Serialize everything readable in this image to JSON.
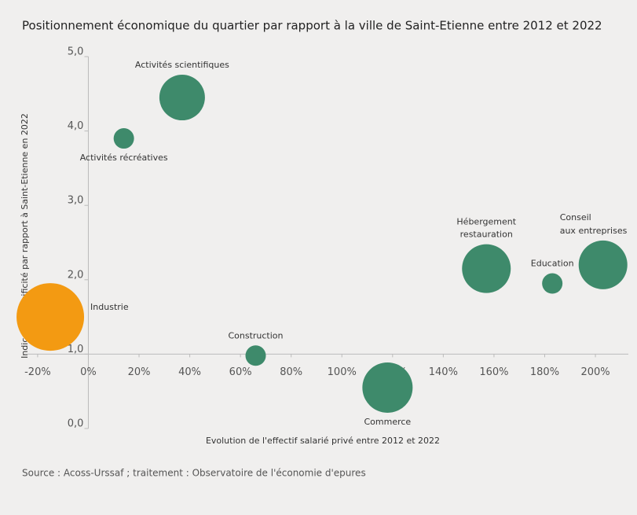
{
  "chart_data": {
    "type": "bubble",
    "title": "Positionnement économique du quartier par rapport à la ville de Saint-Etienne entre 2012 et 2022",
    "x_label": "Evolution de l'effectif salarié privé entre 2012 et 2022",
    "y_label": "Indice de spécificité par rapport à Saint-Etienne en 2022",
    "source": "Source : Acoss-Urssaf ; traitement : Observatoire de l'économie d'epures",
    "labels": [
      [
        "Industrie"
      ],
      [
        "Activités scientifiques"
      ],
      [
        "Activités récréatives"
      ],
      [
        "Construction"
      ],
      [
        "Commerce"
      ],
      [
        "Hébergement",
        "restauration"
      ],
      [
        "Education"
      ],
      [
        "Conseil",
        "aux entreprises"
      ]
    ],
    "x": [
      -15,
      37,
      14,
      66,
      118,
      157,
      183,
      203
    ],
    "values": [
      1.5,
      4.45,
      3.9,
      0.98,
      0.55,
      2.15,
      1.95,
      2.2
    ],
    "sizes": [
      43,
      29,
      13,
      13,
      32,
      31,
      13,
      31
    ],
    "colors": [
      "#f39a12",
      "#3e8a6b",
      "#3e8a6b",
      "#3e8a6b",
      "#3e8a6b",
      "#3e8a6b",
      "#3e8a6b",
      "#3e8a6b"
    ],
    "xlim": [
      -24,
      213
    ],
    "ylim": [
      0,
      5
    ],
    "xaxis_crosses_y": 1,
    "yaxis_crosses_x": 0,
    "xticks": [
      {
        "value": -20,
        "label": "-20%"
      },
      {
        "value": 0,
        "label": "0%"
      },
      {
        "value": 20,
        "label": "20%"
      },
      {
        "value": 40,
        "label": "40%"
      },
      {
        "value": 60,
        "label": "60%"
      },
      {
        "value": 80,
        "label": "80%"
      },
      {
        "value": 100,
        "label": "100%"
      },
      {
        "value": 120,
        "label": "120%"
      },
      {
        "value": 140,
        "label": "140%"
      },
      {
        "value": 160,
        "label": "160%"
      },
      {
        "value": 180,
        "label": "180%"
      },
      {
        "value": 200,
        "label": "200%"
      }
    ],
    "yticks": [
      {
        "value": 0,
        "label": "0,0"
      },
      {
        "value": 1,
        "label": "1,0"
      },
      {
        "value": 2,
        "label": "2,0"
      },
      {
        "value": 3,
        "label": "3,0"
      },
      {
        "value": 4,
        "label": "4,0"
      },
      {
        "value": 5,
        "label": "5,0"
      }
    ]
  }
}
